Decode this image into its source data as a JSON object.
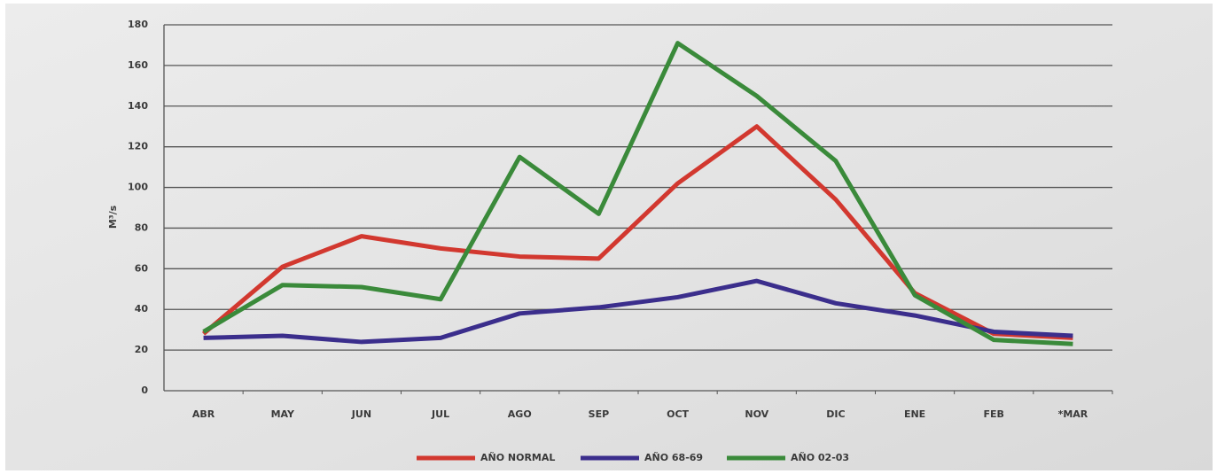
{
  "chart_data": {
    "type": "line",
    "y_label": "M³/s",
    "categories": [
      "ABR",
      "MAY",
      "JUN",
      "JUL",
      "AGO",
      "SEP",
      "OCT",
      "NOV",
      "DIC",
      "ENE",
      "FEB",
      "*MAR"
    ],
    "series": [
      {
        "name": "AÑO NORMAL",
        "color": "#d2382f",
        "values": [
          28,
          61,
          76,
          70,
          66,
          65,
          102,
          130,
          94,
          48,
          28,
          26
        ]
      },
      {
        "name": "AÑO 68-69",
        "color": "#3b2e8c",
        "values": [
          26,
          27,
          24,
          26,
          38,
          41,
          46,
          54,
          43,
          37,
          29,
          27
        ]
      },
      {
        "name": "AÑO 02-03",
        "color": "#3a8a3a",
        "values": [
          29,
          52,
          51,
          45,
          115,
          87,
          171,
          145,
          113,
          47,
          25,
          23
        ]
      }
    ],
    "ylim": [
      0,
      180
    ],
    "yticks": [
      0,
      20,
      40,
      60,
      80,
      100,
      120,
      140,
      160,
      180
    ],
    "grid": true,
    "legend": "bottom"
  }
}
